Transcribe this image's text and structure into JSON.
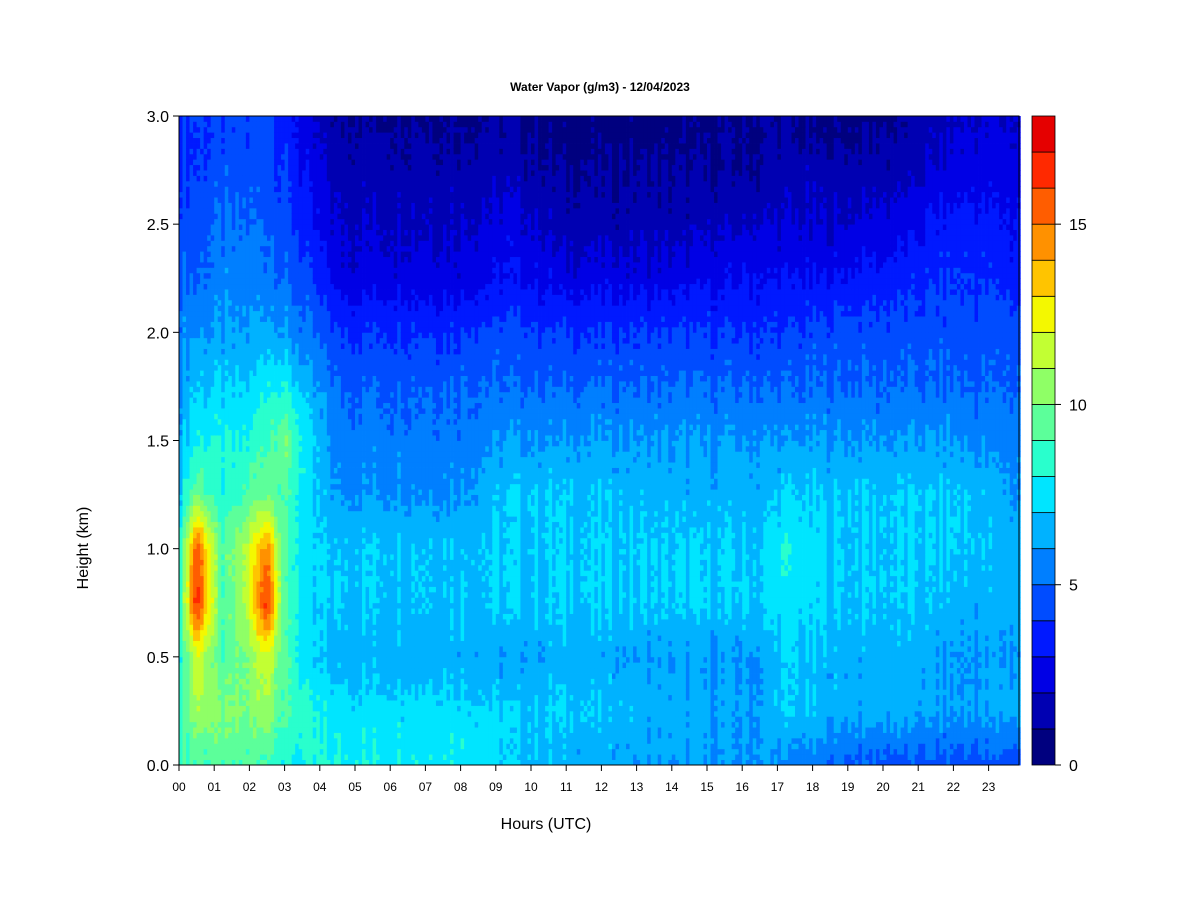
{
  "chart_data": {
    "type": "heatmap",
    "title": "Water Vapor (g/m3) - 12/04/2023",
    "xlabel": "Hours (UTC)",
    "ylabel": "Height (km)",
    "x_ticks": [
      "00",
      "01",
      "02",
      "03",
      "04",
      "05",
      "06",
      "07",
      "08",
      "09",
      "10",
      "11",
      "12",
      "13",
      "14",
      "15",
      "16",
      "17",
      "18",
      "19",
      "20",
      "21",
      "22",
      "23"
    ],
    "x_range": [
      0,
      23.9
    ],
    "y_ticks": [
      "0.0",
      "0.5",
      "1.0",
      "1.5",
      "2.0",
      "2.5",
      "3.0"
    ],
    "y_range": [
      0,
      3.0
    ],
    "colorbar": {
      "min": 0,
      "max": 18,
      "step": 1,
      "tick_values": [
        0,
        5,
        10,
        15
      ],
      "tick_labels": [
        "0",
        "5",
        "10",
        "15"
      ],
      "colors": [
        "#00007f",
        "#0000b2",
        "#0000e5",
        "#0019ff",
        "#004cff",
        "#007fff",
        "#00b2ff",
        "#00e5ff",
        "#29ffcd",
        "#5cff9a",
        "#8fff66",
        "#c2ff33",
        "#f4f800",
        "#ffc400",
        "#ff9100",
        "#ff5d00",
        "#ff2900",
        "#e50000",
        "#7f0000"
      ]
    },
    "field_profiles": [
      {
        "hour": 0.0,
        "h": [
          0.0,
          0.25,
          0.5,
          0.75,
          1.0,
          1.25,
          1.5,
          1.75,
          2.0,
          2.25,
          2.5,
          2.75,
          3.0
        ],
        "v": [
          9,
          8.5,
          8,
          8,
          8,
          7,
          6.5,
          6,
          5.5,
          5,
          4.5,
          4,
          4
        ]
      },
      {
        "hour": 0.5,
        "h": [
          0.0,
          0.25,
          0.5,
          0.75,
          1.0,
          1.25,
          1.5,
          1.75,
          2.0,
          2.25,
          2.5,
          2.75,
          3.0
        ],
        "v": [
          9,
          11,
          12,
          17,
          16,
          10,
          8,
          7,
          6,
          5,
          4.5,
          4,
          4
        ]
      },
      {
        "hour": 1.2,
        "h": [
          0.0,
          0.25,
          0.5,
          0.75,
          1.0,
          1.25,
          1.5,
          1.75,
          2.0,
          2.25,
          2.5,
          2.75,
          3.0
        ],
        "v": [
          9,
          10,
          9,
          9,
          9,
          8,
          8,
          7,
          6,
          5.5,
          5,
          4.5,
          4
        ]
      },
      {
        "hour": 1.9,
        "h": [
          0.0,
          0.25,
          0.5,
          0.75,
          1.0,
          1.25,
          1.5,
          1.75,
          2.0,
          2.25,
          2.5,
          2.75,
          3.0
        ],
        "v": [
          9,
          10,
          10,
          11,
          11,
          9,
          8,
          7,
          6,
          5.5,
          5,
          4.5,
          4
        ]
      },
      {
        "hour": 2.5,
        "h": [
          0.0,
          0.25,
          0.5,
          0.75,
          1.0,
          1.25,
          1.5,
          1.75,
          2.0,
          2.25,
          2.5,
          2.75,
          3.0
        ],
        "v": [
          9,
          11,
          12,
          17,
          15,
          10,
          9,
          8,
          6.5,
          5.5,
          5,
          4.5,
          4.5
        ]
      },
      {
        "hour": 3.0,
        "h": [
          0.0,
          0.25,
          0.5,
          0.75,
          1.0,
          1.25,
          1.5,
          1.75,
          2.0,
          2.25,
          2.5,
          2.75,
          3.0
        ],
        "v": [
          8,
          9,
          9,
          9,
          9,
          9,
          10,
          8,
          6,
          5,
          4.5,
          4,
          3.5
        ]
      },
      {
        "hour": 3.8,
        "h": [
          0.0,
          0.25,
          0.5,
          0.75,
          1.0,
          1.25,
          1.5,
          1.75,
          2.0,
          2.25,
          2.5,
          2.75,
          3.0
        ],
        "v": [
          8,
          8,
          7,
          7,
          7,
          7,
          7,
          6,
          5,
          4,
          3,
          2.5,
          2
        ]
      },
      {
        "hour": 4.5,
        "h": [
          0.0,
          0.25,
          0.5,
          0.75,
          1.0,
          1.25,
          1.5,
          1.75,
          2.0,
          2.25,
          2.5,
          2.75,
          3.0
        ],
        "v": [
          8,
          7.5,
          6.5,
          7,
          7,
          6,
          5.5,
          5,
          4,
          2.5,
          2,
          1.5,
          1
        ]
      },
      {
        "hour": 8.0,
        "h": [
          0.0,
          0.25,
          0.5,
          0.75,
          1.0,
          1.25,
          1.5,
          1.75,
          2.0,
          2.25,
          2.5,
          2.75,
          3.0
        ],
        "v": [
          8,
          7.5,
          6.5,
          7,
          7,
          6,
          5.5,
          5,
          4,
          2.5,
          2,
          1.5,
          1
        ]
      },
      {
        "hour": 9.4,
        "h": [
          0.0,
          0.25,
          0.5,
          0.75,
          1.0,
          1.25,
          1.5,
          1.75,
          2.0,
          2.25,
          2.5,
          2.75,
          3.0
        ],
        "v": [
          7,
          7,
          6,
          7,
          7,
          7,
          6,
          5,
          4.5,
          3,
          2.5,
          1.5,
          1
        ]
      },
      {
        "hour": 11.0,
        "h": [
          0.0,
          0.25,
          0.5,
          0.75,
          1.0,
          1.25,
          1.5,
          1.75,
          2.0,
          2.25,
          2.5,
          2.75,
          3.0
        ],
        "v": [
          6.5,
          7,
          6.5,
          7,
          7,
          7,
          6,
          5,
          4,
          2.5,
          1.5,
          1,
          0.5
        ]
      },
      {
        "hour": 14.0,
        "h": [
          0.0,
          0.25,
          0.5,
          0.75,
          1.0,
          1.25,
          1.5,
          1.75,
          2.0,
          2.25,
          2.5,
          2.75,
          3.0
        ],
        "v": [
          6,
          6.5,
          6,
          7,
          7,
          6.5,
          6,
          5,
          4,
          2.5,
          1.5,
          1,
          0.5
        ]
      },
      {
        "hour": 16.5,
        "h": [
          0.0,
          0.25,
          0.5,
          0.75,
          1.0,
          1.25,
          1.5,
          1.75,
          2.0,
          2.25,
          2.5,
          2.75,
          3.0
        ],
        "v": [
          6,
          6,
          6,
          7,
          7,
          6.5,
          6,
          5,
          4,
          3,
          2,
          1,
          1
        ]
      },
      {
        "hour": 17.1,
        "h": [
          0.0,
          0.25,
          0.5,
          0.75,
          1.0,
          1.25,
          1.5,
          1.75,
          2.0,
          2.25,
          2.5,
          2.75,
          3.0
        ],
        "v": [
          5.5,
          7,
          7,
          7.5,
          8,
          7,
          6,
          5,
          4,
          3,
          2,
          1.5,
          1
        ]
      },
      {
        "hour": 18.5,
        "h": [
          0.0,
          0.25,
          0.5,
          0.75,
          1.0,
          1.25,
          1.5,
          1.75,
          2.0,
          2.25,
          2.5,
          2.75,
          3.0
        ],
        "v": [
          5,
          6.5,
          6.5,
          7,
          7,
          7,
          6,
          5,
          4.5,
          3,
          2,
          1.5,
          0.5
        ]
      },
      {
        "hour": 20.5,
        "h": [
          0.0,
          0.25,
          0.5,
          0.75,
          1.0,
          1.25,
          1.5,
          1.75,
          2.0,
          2.25,
          2.5,
          2.75,
          3.0
        ],
        "v": [
          4.5,
          6.5,
          6.5,
          7,
          7,
          7,
          6,
          5,
          4.5,
          3.5,
          2.5,
          1.5,
          1
        ]
      },
      {
        "hour": 22.2,
        "h": [
          0.0,
          0.25,
          0.5,
          0.75,
          1.0,
          1.25,
          1.5,
          1.75,
          2.0,
          2.25,
          2.5,
          2.75,
          3.0
        ],
        "v": [
          4.5,
          6,
          6,
          6.5,
          7,
          7,
          6,
          5,
          4.5,
          4,
          3.5,
          2.5,
          2
        ]
      },
      {
        "hour": 23.9,
        "h": [
          0.0,
          0.25,
          0.5,
          0.75,
          1.0,
          1.25,
          1.5,
          1.75,
          2.0,
          2.25,
          2.5,
          2.75,
          3.0
        ],
        "v": [
          4.5,
          6.5,
          6,
          6.5,
          6.5,
          6,
          5.5,
          5,
          4.5,
          3.5,
          3,
          2.5,
          2
        ]
      }
    ]
  }
}
